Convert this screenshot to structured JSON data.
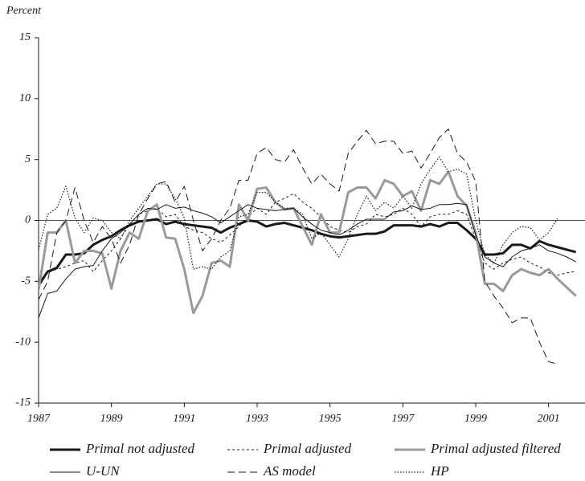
{
  "chart_data": {
    "type": "line",
    "y_label": "Percent",
    "x": [
      1987,
      1987.25,
      1987.5,
      1987.75,
      1988,
      1988.25,
      1988.5,
      1988.75,
      1989,
      1989.25,
      1989.5,
      1989.75,
      1990,
      1990.25,
      1990.5,
      1990.75,
      1991,
      1991.25,
      1991.5,
      1991.75,
      1992,
      1992.25,
      1992.5,
      1992.75,
      1993,
      1993.25,
      1993.5,
      1993.75,
      1994,
      1994.25,
      1994.5,
      1994.75,
      1995,
      1995.25,
      1995.5,
      1995.75,
      1996,
      1996.25,
      1996.5,
      1996.75,
      1997,
      1997.25,
      1997.5,
      1997.75,
      1998,
      1998.25,
      1998.5,
      1998.75,
      1999,
      1999.25,
      1999.5,
      1999.75,
      2000,
      2000.25,
      2000.5,
      2000.75,
      2001,
      2001.25,
      2001.5,
      2001.75
    ],
    "xlim": [
      1987,
      2002
    ],
    "xticks": [
      1987,
      1989,
      1991,
      1993,
      1995,
      1997,
      1999,
      2001
    ],
    "ylim": [
      -15,
      15
    ],
    "yticks": [
      -15,
      -10,
      -5,
      0,
      5,
      10,
      15
    ],
    "zero_line": true,
    "series": [
      {
        "name": "Primal not adjusted",
        "color": "#1a1a1a",
        "width": 3,
        "dash": "none",
        "values": [
          -5.3,
          -4.2,
          -3.9,
          -2.8,
          -2.8,
          -2.7,
          -2.0,
          -1.6,
          -1.3,
          -0.8,
          -0.4,
          -0.1,
          0.0,
          0.1,
          -0.3,
          -0.1,
          -0.3,
          -0.4,
          -0.5,
          -0.6,
          -1.0,
          -0.6,
          -0.3,
          0.0,
          -0.1,
          -0.5,
          -0.3,
          -0.2,
          -0.4,
          -0.6,
          -0.8,
          -1.1,
          -1.3,
          -1.4,
          -1.3,
          -1.2,
          -1.1,
          -1.1,
          -0.9,
          -0.4,
          -0.4,
          -0.4,
          -0.5,
          -0.3,
          -0.5,
          -0.2,
          -0.2,
          -0.8,
          -1.5,
          -2.8,
          -2.8,
          -2.7,
          -2.0,
          -2.0,
          -2.3,
          -1.7,
          -2.0,
          -2.2,
          -2.4,
          -2.6
        ]
      },
      {
        "name": "Primal adjusted",
        "color": "#1a1a1a",
        "width": 1,
        "dash": "3,3",
        "values": [
          -5.5,
          -4.3,
          -4.0,
          -3.8,
          -3.5,
          -3.3,
          -4.2,
          -3.3,
          -2.5,
          -1.5,
          -0.3,
          0.5,
          0.8,
          1.0,
          0.3,
          0.5,
          -0.5,
          -0.8,
          -1.0,
          -1.5,
          -1.8,
          -1.2,
          -0.5,
          0.3,
          1.0,
          0.5,
          1.5,
          1.8,
          2.2,
          1.5,
          1.0,
          0.3,
          -0.5,
          -0.8,
          -1.0,
          -0.5,
          -0.3,
          0.5,
          0.3,
          0.5,
          1.0,
          0.5,
          -0.5,
          0.3,
          0.5,
          0.5,
          0.8,
          0.5,
          -1.5,
          -3.5,
          -4.0,
          -3.5,
          -3.2,
          -3.0,
          -3.5,
          -3.8,
          -4.3,
          -4.5,
          -4.3,
          -4.2
        ]
      },
      {
        "name": "Primal adjusted filtered",
        "color": "#9a9a9a",
        "width": 3,
        "dash": "none",
        "values": [
          -5.7,
          -1.0,
          -1.0,
          0.0,
          -3.5,
          -2.5,
          -2.5,
          -2.7,
          -5.6,
          -2.5,
          -1.0,
          -1.5,
          0.8,
          1.3,
          -1.4,
          -1.5,
          -4.0,
          -7.6,
          -6.2,
          -3.5,
          -3.3,
          -3.8,
          1.3,
          0.0,
          2.6,
          2.7,
          1.5,
          0.9,
          1.0,
          -0.5,
          -2.0,
          0.5,
          -1.0,
          -1.0,
          2.3,
          2.7,
          2.7,
          1.8,
          3.3,
          3.0,
          2.0,
          2.4,
          0.8,
          3.3,
          3.0,
          4.0,
          2.0,
          1.2,
          -1.0,
          -5.2,
          -5.2,
          -5.8,
          -4.5,
          -4.0,
          -4.3,
          -4.5,
          -4.0,
          -4.8,
          -5.5,
          -6.2
        ]
      },
      {
        "name": "U-UN",
        "color": "#1a1a1a",
        "width": 1,
        "dash": "none",
        "values": [
          -8.0,
          -6.0,
          -5.8,
          -4.8,
          -4.0,
          -3.8,
          -3.7,
          -2.5,
          -1.5,
          -1.0,
          -0.3,
          0.5,
          1.0,
          0.9,
          1.3,
          1.0,
          1.1,
          0.8,
          0.6,
          0.3,
          -0.2,
          0.3,
          0.8,
          1.3,
          1.0,
          0.9,
          0.8,
          0.9,
          1.0,
          0.3,
          -0.3,
          -0.8,
          -1.0,
          -1.2,
          -0.8,
          -0.3,
          0.1,
          0.1,
          0.1,
          0.7,
          0.8,
          1.2,
          0.9,
          1.0,
          1.3,
          1.3,
          1.4,
          1.3,
          -1.2,
          -3.0,
          -3.5,
          -3.8,
          -3.0,
          -2.5,
          -2.3,
          -2.0,
          -2.5,
          -2.7,
          -3.0,
          -3.4
        ]
      },
      {
        "name": "AS model",
        "color": "#1a1a1a",
        "width": 1,
        "dash": "9,5",
        "values": [
          -6.5,
          -5.0,
          -1.0,
          0.0,
          2.7,
          0.0,
          -1.8,
          -0.5,
          -1.5,
          -3.5,
          -2.0,
          0.5,
          1.8,
          3.0,
          3.2,
          1.5,
          2.8,
          0.0,
          -2.5,
          -1.5,
          0.0,
          1.0,
          3.3,
          3.3,
          5.5,
          6.0,
          5.0,
          4.8,
          5.8,
          4.3,
          3.0,
          3.8,
          3.0,
          2.4,
          5.5,
          6.5,
          7.4,
          6.3,
          6.5,
          6.5,
          5.5,
          5.7,
          4.3,
          5.5,
          6.8,
          7.5,
          5.5,
          4.8,
          3.2,
          -5.0,
          -6.2,
          -7.2,
          -8.4,
          -8.0,
          -8.0,
          -10.0,
          -11.6,
          -11.8,
          null,
          null
        ]
      },
      {
        "name": "HP",
        "color": "#1a1a1a",
        "width": 1.2,
        "dash": "1.5,2",
        "values": [
          -2.4,
          0.5,
          1.0,
          2.8,
          0.2,
          -1.0,
          0.2,
          0.0,
          -1.0,
          -1.5,
          0.0,
          1.0,
          2.0,
          3.0,
          3.0,
          1.8,
          0.2,
          -4.0,
          -3.8,
          -4.0,
          -3.0,
          -2.5,
          0.3,
          0.5,
          2.3,
          2.3,
          1.5,
          1.0,
          1.0,
          0.5,
          -1.5,
          -1.0,
          -2.0,
          -3.0,
          -1.5,
          0.5,
          2.0,
          0.8,
          1.5,
          1.0,
          2.0,
          1.0,
          3.0,
          4.2,
          5.2,
          4.0,
          4.2,
          3.8,
          0.0,
          -2.8,
          -3.5,
          -2.0,
          -1.0,
          -0.5,
          -0.6,
          -1.6,
          -1.0,
          0.2,
          null,
          null
        ]
      }
    ]
  }
}
